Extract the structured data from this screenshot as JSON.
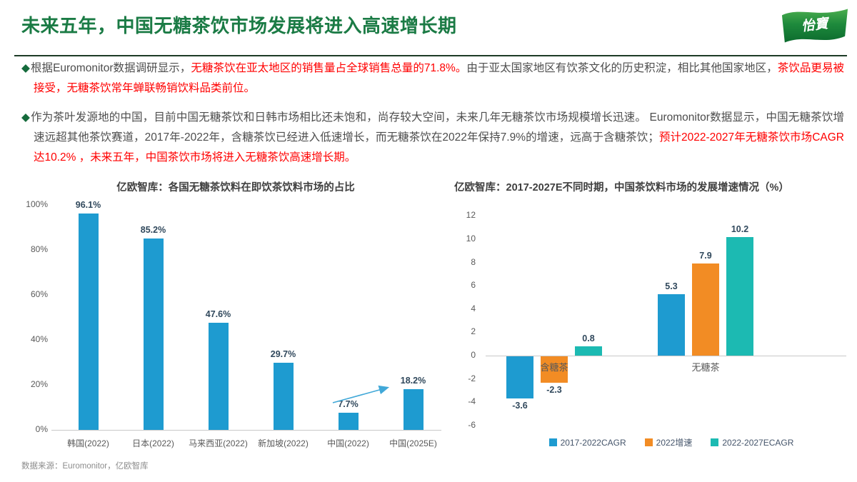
{
  "header": {
    "title": "未来五年，中国无糖茶饮市场发展将进入高速增长期",
    "logo_text": "怡寶"
  },
  "bullets": [
    {
      "segments": [
        {
          "text": "根据Euromonitor数据调研显示，",
          "red": false
        },
        {
          "text": "无糖茶饮在亚太地区的销售量占全球销售总量的71.8%。",
          "red": true
        },
        {
          "text": "由于亚太国家地区有饮茶文化的历史积淀，相比其他国家地区，",
          "red": false
        },
        {
          "text": "茶饮品更易被接受，无糖茶饮常年蝉联畅销饮料品类前位。",
          "red": true
        }
      ]
    },
    {
      "segments": [
        {
          "text": "作为茶叶发源地的中国，目前中国无糖茶饮和日韩市场相比还未饱和，尚存较大空间，未来几年无糖茶饮市场规模增长迅速。  Euromonitor数据显示，中国无糖茶饮增速远超其他茶饮赛道，2017年-2022年，含糖茶饮已经进入低速增长，而无糖茶饮在2022年保持7.9%的增速，远高于含糖茶饮；",
          "red": false
        },
        {
          "text": "预计2022-2027年无糖茶饮市场CAGR达10.2% ，未来五年，中国茶饮市场将进入无糖茶饮高速增长期。",
          "red": true
        }
      ]
    }
  ],
  "chart_data": [
    {
      "type": "bar",
      "title": "亿欧智库：各国无糖茶饮料在即饮茶饮料市场的占比",
      "categories": [
        "韩国(2022)",
        "日本(2022)",
        "马来西亚(2022)",
        "新加坡(2022)",
        "中国(2022)",
        "中国(2025E)"
      ],
      "values": [
        96.1,
        85.2,
        47.6,
        29.7,
        7.7,
        18.2
      ],
      "value_labels": [
        "96.1%",
        "85.2%",
        "47.6%",
        "29.7%",
        "7.7%",
        "18.2%"
      ],
      "y_ticks": [
        "0%",
        "20%",
        "40%",
        "60%",
        "80%",
        "100%"
      ],
      "y_tick_values": [
        0,
        20,
        40,
        60,
        80,
        100
      ],
      "ylim": [
        0,
        100
      ],
      "bar_color": "#1E9BD0",
      "grid": false,
      "annotation": "growth arrow from 中国(2022) bar to 中国(2025E) bar"
    },
    {
      "type": "grouped-bar",
      "title": "亿欧智库：2017-2027E不同时期，中国茶饮料市场的发展增速情况（%）",
      "categories": [
        "含糖茶",
        "无糖茶"
      ],
      "series": [
        {
          "name": "2017-2022CAGR",
          "color": "#1E9BD0",
          "values": [
            -3.6,
            5.3
          ]
        },
        {
          "name": "2022增速",
          "color": "#F28C24",
          "values": [
            -2.3,
            7.9
          ]
        },
        {
          "name": "2022-2027ECAGR",
          "color": "#1CBAB2",
          "values": [
            0.8,
            10.2
          ]
        }
      ],
      "y_ticks": [
        12,
        10,
        8,
        6,
        4,
        2,
        0,
        -2,
        -4,
        -6
      ],
      "ylim": [
        -6,
        12
      ],
      "grid": false,
      "legend_position": "bottom"
    }
  ],
  "footer": {
    "source": "数据来源：Euromonitor，亿欧智库"
  },
  "colors": {
    "title_green": "#1B7B45",
    "bullet_green": "#156B3C",
    "highlight_red": "#FF0000",
    "body_text": "#4D4D4D",
    "blue_bar": "#1E9BD0",
    "orange_bar": "#F28C24",
    "teal_bar": "#1CBAB2",
    "arrow_blue": "#41A8D8"
  }
}
